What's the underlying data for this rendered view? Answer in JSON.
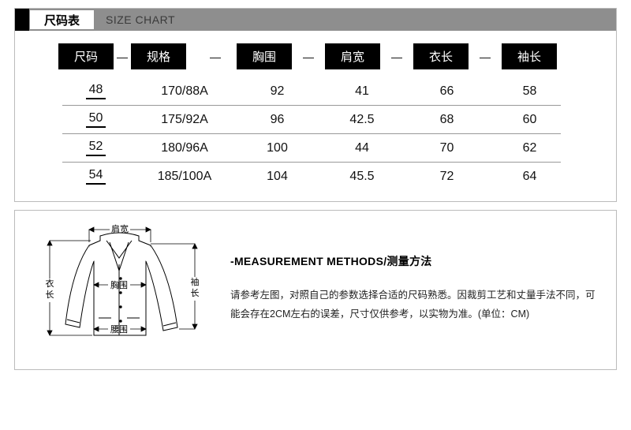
{
  "header": {
    "tab_cn": "尺码表",
    "tab_en": "SIZE CHART"
  },
  "table": {
    "columns": [
      "尺码",
      "规格",
      "胸围",
      "肩宽",
      "衣长",
      "袖长"
    ],
    "rows": [
      [
        "48",
        "170/88A",
        "92",
        "41",
        "66",
        "58"
      ],
      [
        "50",
        "175/92A",
        "96",
        "42.5",
        "68",
        "60"
      ],
      [
        "52",
        "180/96A",
        "100",
        "44",
        "70",
        "62"
      ],
      [
        "54",
        "185/100A",
        "104",
        "45.5",
        "72",
        "64"
      ]
    ],
    "header_bg": "#000000",
    "header_fg": "#ffffff",
    "divider_color": "#999999",
    "font_size_header": 15,
    "font_size_cell": 16
  },
  "diagram_labels": {
    "shoulder": "肩宽",
    "chest": "胸围",
    "waist": "腰围",
    "length": "衣长",
    "sleeve": "袖长"
  },
  "measurement": {
    "title": "-MEASUREMENT METHODS/测量方法",
    "desc": "请参考左图，对照自己的参数选择合适的尺码熟悉。因裁剪工艺和丈量手法不同，可能会存在2CM左右的误差，尺寸仅供参考，以实物为准。(单位：CM)"
  },
  "colors": {
    "panel_border": "#bbbbbb",
    "bar_bg": "#8e8e8e",
    "black": "#000000",
    "text": "#111111"
  }
}
